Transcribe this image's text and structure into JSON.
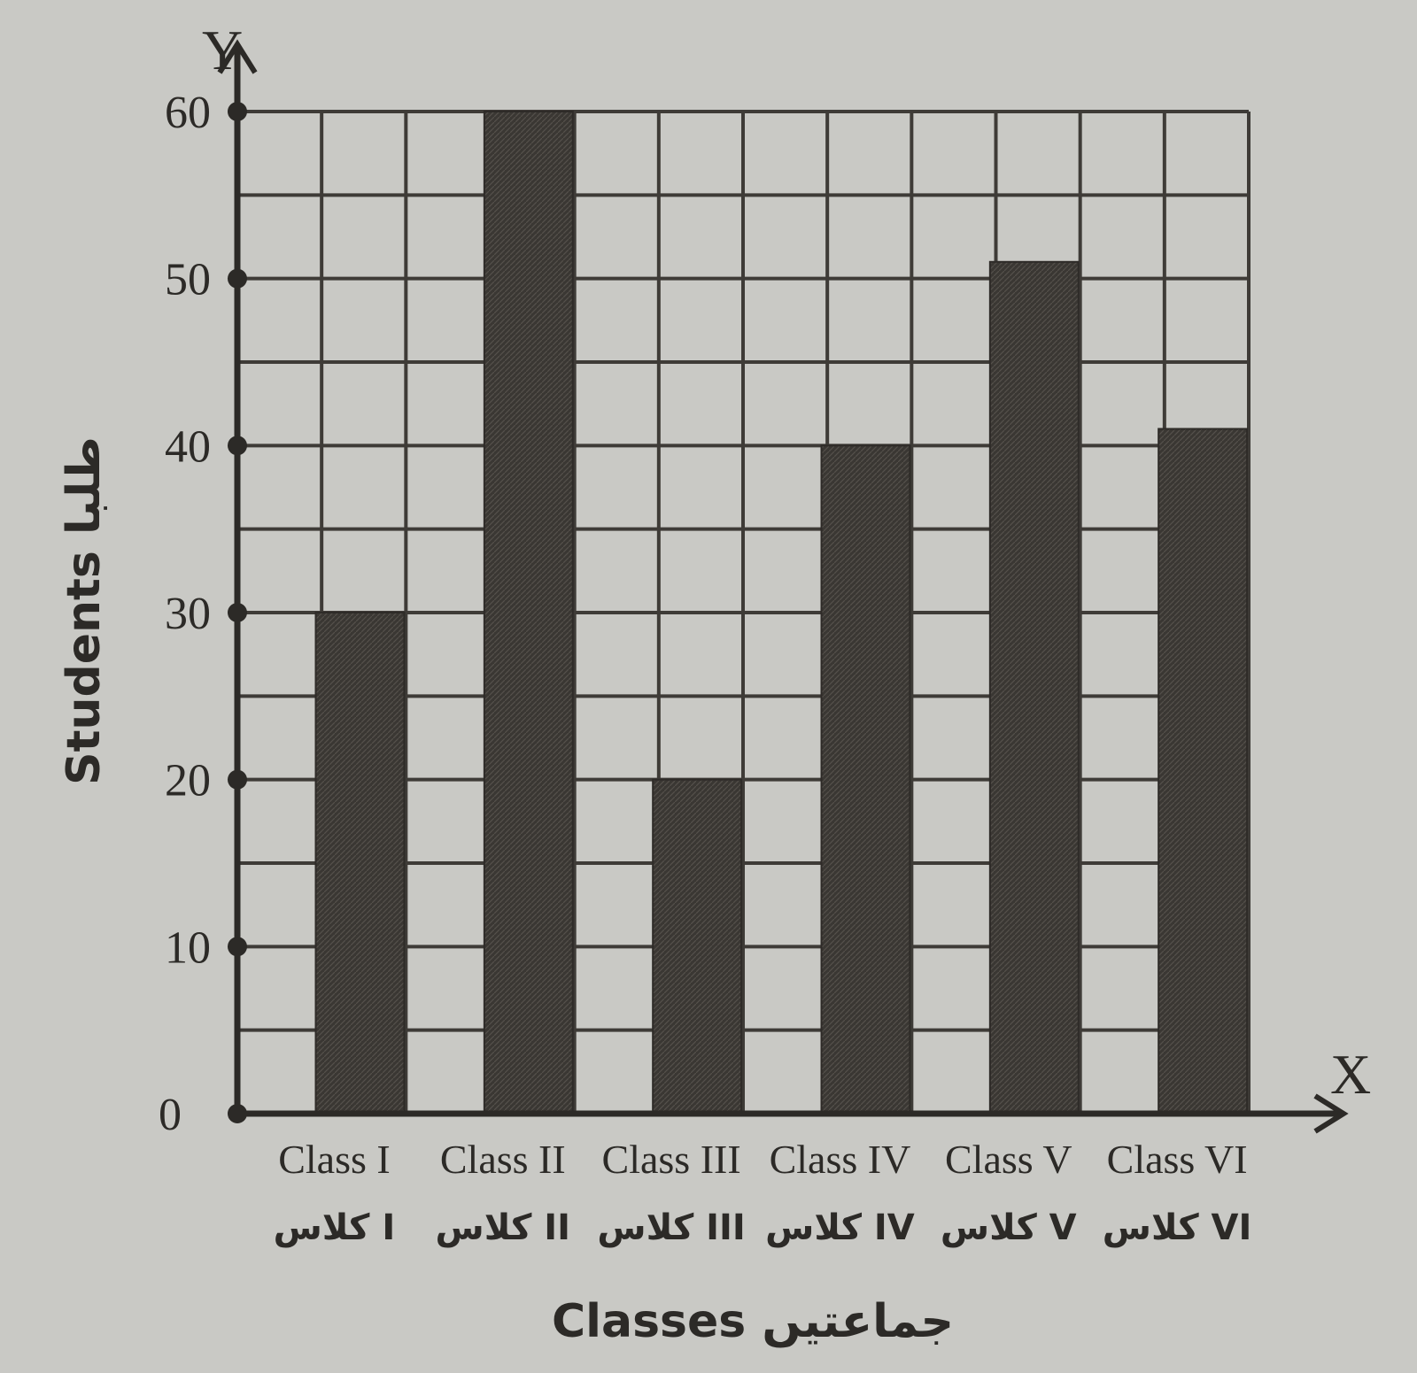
{
  "chart_data": {
    "type": "bar",
    "categories": [
      "Class I",
      "Class II",
      "Class III",
      "Class IV",
      "Class V",
      "Class VI"
    ],
    "categories_urdu": [
      "کلاس I",
      "کلاس II",
      "کلاس III",
      "کلاس IV",
      "کلاس V",
      "کلاس VI"
    ],
    "values": [
      30,
      60,
      20,
      40,
      51,
      41
    ],
    "xlabel": "Classes جماعتیں",
    "ylabel": "Students طلبا",
    "x_axis_letter": "X",
    "y_axis_letter": "Y",
    "ylim": [
      0,
      60
    ],
    "yticks": [
      0,
      10,
      20,
      30,
      40,
      50,
      60
    ],
    "grid": true,
    "colors": {
      "bar": "#3a3733",
      "grid": "#3e3b37",
      "background": "#c9c9c5"
    }
  }
}
